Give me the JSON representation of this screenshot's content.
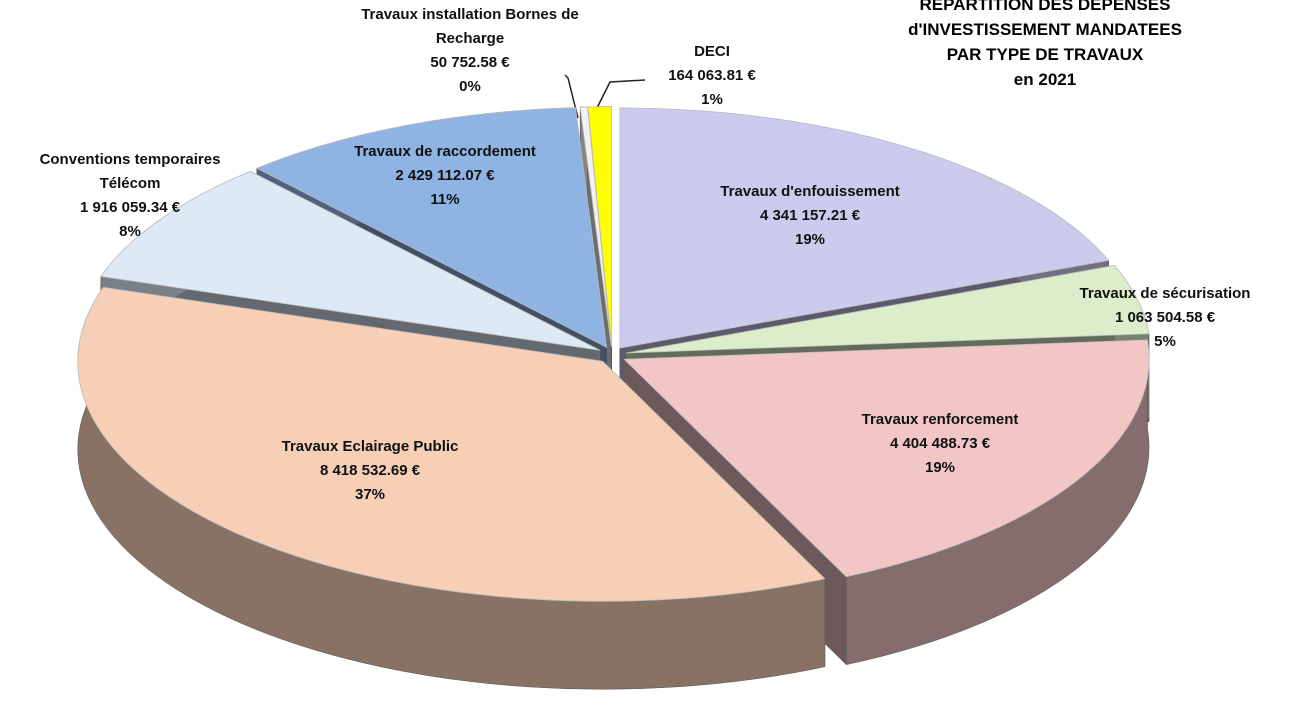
{
  "chart_data": {
    "type": "pie",
    "title": [
      "RÉPARTITION DES DÉPENSES",
      "d'INVESTISSEMENT MANDATEES",
      "PAR TYPE DE TRAVAUX",
      "en  2021"
    ],
    "categories": [
      "Travaux d'enfouissement",
      "Travaux de sécurisation",
      "Travaux renforcement",
      "Travaux Eclairage Public",
      "Conventions temporaires Télécom",
      "Travaux de raccordement",
      "Travaux installation Bornes de Recharge",
      "DECI"
    ],
    "values": [
      4341157.21,
      1063504.58,
      4404488.73,
      8418532.69,
      1916059.34,
      2429112.07,
      50752.58,
      164063.81
    ],
    "value_labels": [
      "4 341 157.21 €",
      "1 063 504.58 €",
      "4 404 488.73 €",
      "8 418 532.69 €",
      "1 916 059.34 €",
      "2 429 112.07 €",
      "50 752.58 €",
      "164 063.81 €"
    ],
    "percent_labels": [
      "19%",
      "5%",
      "19%",
      "37%",
      "8%",
      "11%",
      "0%",
      "1%"
    ],
    "colors": [
      "#cbcbee",
      "#dcedcb",
      "#f3c6c6",
      "#f6cfb6",
      "#dde9f5",
      "#8fb4e3",
      "#f2f2f2",
      "#ffff00"
    ]
  }
}
